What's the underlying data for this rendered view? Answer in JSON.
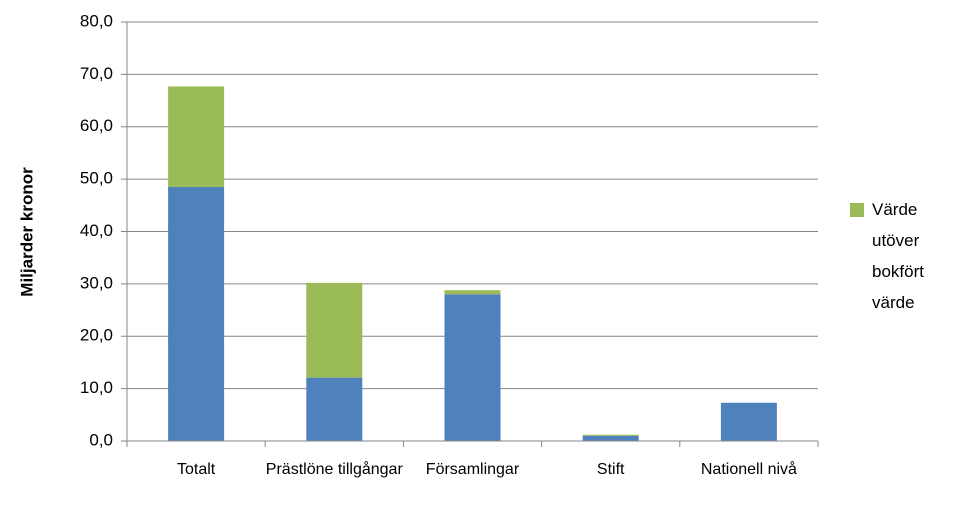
{
  "chart_data": {
    "type": "bar",
    "stacked": true,
    "y_label": "Miljarder kronor",
    "categories": [
      "Totalt",
      "Prästlöne tillgångar",
      "Församlingar",
      "Stift",
      "Nationell nivå"
    ],
    "series": [
      {
        "color": "#4f81bd",
        "values": [
          48.5,
          12.1,
          28.0,
          1.0,
          7.3
        ]
      },
      {
        "name": "Värde utöver bokfört värde",
        "color": "#9bbb59",
        "values": [
          19.2,
          18.1,
          0.8,
          0.2,
          0
        ]
      }
    ],
    "ylim": [
      0,
      80
    ],
    "yticks": [
      {
        "value": 0,
        "label": "0,0"
      },
      {
        "value": 10,
        "label": "10,0"
      },
      {
        "value": 20,
        "label": "20,0"
      },
      {
        "value": 30,
        "label": "30,0"
      },
      {
        "value": 40,
        "label": "40,0"
      },
      {
        "value": 50,
        "label": "50,0"
      },
      {
        "value": 60,
        "label": "60,0"
      },
      {
        "value": 70,
        "label": "70,0"
      },
      {
        "value": 80,
        "label": "80,0"
      }
    ],
    "grid": true,
    "legend": "right"
  }
}
